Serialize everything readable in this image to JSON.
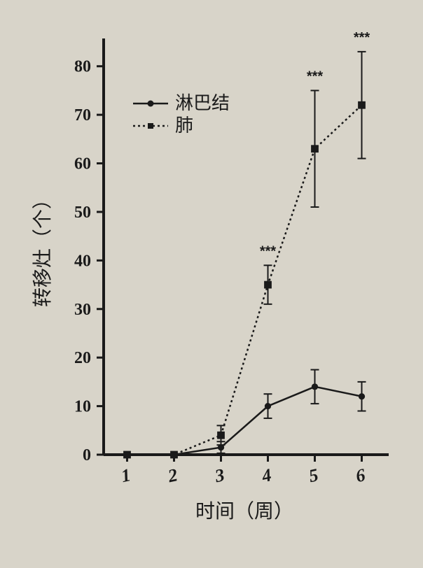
{
  "chart": {
    "type": "line-errorbar",
    "background_color": "#d8d4c9",
    "axis_color": "#1a1a1a",
    "axis_width": 4,
    "tick_length": 10,
    "ylabel": "转移灶（个）",
    "xlabel": "时间（周）",
    "label_fontsize": 28,
    "tick_fontsize": 24,
    "xtick_fontstyle": "italic-bold",
    "ylim": [
      0,
      85
    ],
    "yticks": [
      0,
      10,
      20,
      30,
      40,
      50,
      60,
      70,
      80
    ],
    "xlim": [
      0.5,
      6.5
    ],
    "xticks": [
      1,
      2,
      3,
      4,
      5,
      6
    ],
    "xtick_labels": [
      "1",
      "2",
      "3",
      "4",
      "5",
      "6"
    ],
    "legend": {
      "entries": [
        {
          "label": "淋巴结",
          "series": "lymph"
        },
        {
          "label": "肺",
          "series": "lung"
        }
      ],
      "fontsize": 26,
      "box_stroke": "#1a1a1a"
    },
    "series": {
      "lymph": {
        "color": "#1a1a1a",
        "line_dash": "solid",
        "line_width": 2.5,
        "marker": "circle",
        "marker_size": 6,
        "x": [
          1,
          2,
          3,
          4,
          5,
          6
        ],
        "y": [
          0,
          0,
          1.5,
          10,
          14,
          12
        ],
        "err": [
          0,
          0,
          1.2,
          2.5,
          3.5,
          3.0
        ]
      },
      "lung": {
        "color": "#1a1a1a",
        "line_dash": "3,4",
        "line_width": 2.5,
        "marker": "square",
        "marker_size": 7,
        "x": [
          1,
          2,
          3,
          4,
          5,
          6
        ],
        "y": [
          0,
          0,
          4,
          35,
          63,
          72
        ],
        "err": [
          0,
          0,
          2,
          4,
          12,
          11
        ]
      }
    },
    "significance": [
      {
        "x": 4,
        "y_above": 41,
        "text": "***"
      },
      {
        "x": 5,
        "y_above": 77,
        "text": "***"
      },
      {
        "x": 6,
        "y_above": 85,
        "text": "***"
      }
    ]
  }
}
